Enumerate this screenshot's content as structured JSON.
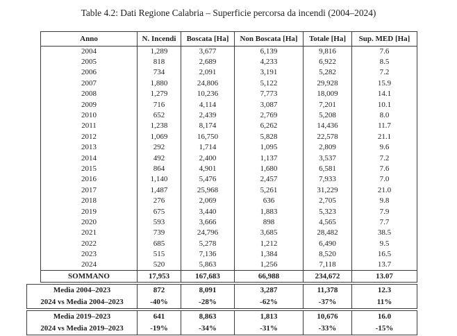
{
  "caption": "Table 4.2: Dati Regione Calabria – Superficie percorsa da incendi (2004–2024)",
  "table": {
    "headers": [
      "Anno",
      "N. Incendi",
      "Boscata [Ha]",
      "Non Boscata [Ha]",
      "Totale [Ha]",
      "Sup. MED [Ha]"
    ],
    "rows": [
      [
        "2004",
        "1,289",
        "3,677",
        "6,139",
        "9,816",
        "7.6"
      ],
      [
        "2005",
        "818",
        "2,689",
        "4,233",
        "6,922",
        "8.5"
      ],
      [
        "2006",
        "734",
        "2,091",
        "3,191",
        "5,282",
        "7.2"
      ],
      [
        "2007",
        "1,880",
        "24,806",
        "5,122",
        "29,928",
        "15.9"
      ],
      [
        "2008",
        "1,279",
        "10,236",
        "7,773",
        "18,009",
        "14.1"
      ],
      [
        "2009",
        "716",
        "4,114",
        "3,087",
        "7,201",
        "10.1"
      ],
      [
        "2010",
        "652",
        "2,439",
        "2,769",
        "5,208",
        "8.0"
      ],
      [
        "2011",
        "1,238",
        "8,174",
        "6,262",
        "14,436",
        "11.7"
      ],
      [
        "2012",
        "1,069",
        "16,750",
        "5,828",
        "22,578",
        "21.1"
      ],
      [
        "2013",
        "292",
        "1,714",
        "1,095",
        "2,809",
        "9.6"
      ],
      [
        "2014",
        "492",
        "2,400",
        "1,137",
        "3,537",
        "7.2"
      ],
      [
        "2015",
        "864",
        "4,901",
        "1,680",
        "6,581",
        "7.6"
      ],
      [
        "2016",
        "1,140",
        "5,476",
        "2,457",
        "7,933",
        "7.0"
      ],
      [
        "2017",
        "1,487",
        "25,968",
        "5,261",
        "31,229",
        "21.0"
      ],
      [
        "2018",
        "276",
        "2,069",
        "636",
        "2,705",
        "9.8"
      ],
      [
        "2019",
        "675",
        "3,440",
        "1,883",
        "5,323",
        "7.9"
      ],
      [
        "2020",
        "593",
        "3,666",
        "898",
        "4,565",
        "7.7"
      ],
      [
        "2021",
        "739",
        "24,796",
        "3,685",
        "28,482",
        "38.5"
      ],
      [
        "2022",
        "685",
        "5,278",
        "1,212",
        "6,490",
        "9.5"
      ],
      [
        "2023",
        "515",
        "7,136",
        "1,384",
        "8,520",
        "16.5"
      ],
      [
        "2024",
        "520",
        "5,863",
        "1,256",
        "7,118",
        "13.7"
      ]
    ],
    "total_row": [
      "SOMMANO",
      "17,953",
      "167,683",
      "66,988",
      "234,672",
      "13.07"
    ],
    "summary_blocks": [
      {
        "rows": [
          [
            "Media 2004–2023",
            "872",
            "8,091",
            "3,287",
            "11,378",
            "12.3"
          ],
          [
            "2024 vs Media 2004–2023",
            "-40%",
            "-28%",
            "-62%",
            "-37%",
            "11%"
          ]
        ]
      },
      {
        "rows": [
          [
            "Media 2019–2023",
            "641",
            "8,863",
            "1,813",
            "10,676",
            "16.0"
          ],
          [
            "2024 vs Media 2019–2023",
            "-19%",
            "-34%",
            "-31%",
            "-33%",
            "-15%"
          ]
        ]
      }
    ]
  }
}
